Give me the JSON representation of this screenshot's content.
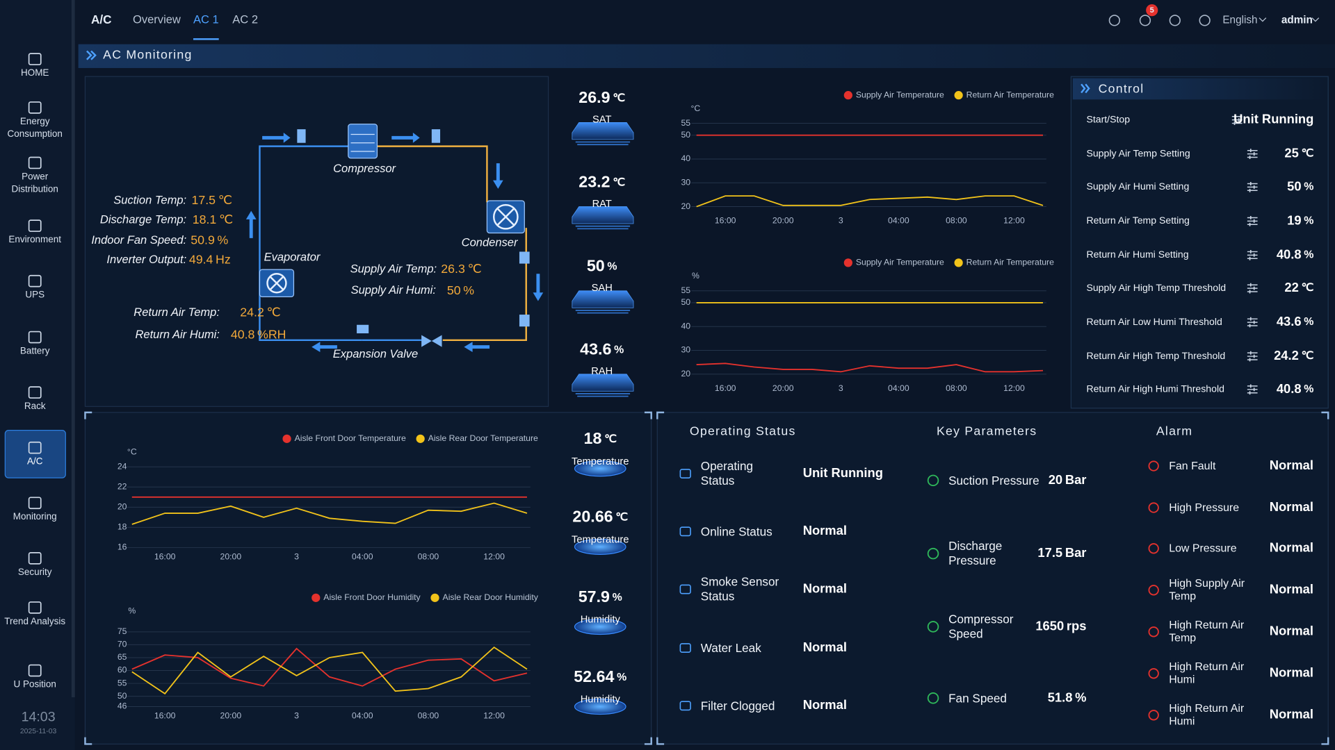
{
  "sidebar": {
    "items": [
      "HOME",
      "Energy Consumption",
      "Power Distribution",
      "Environment",
      "UPS",
      "Battery",
      "Rack",
      "A/C",
      "Monitoring",
      "Security",
      "Trend Analysis",
      "U Position"
    ],
    "time": "14:03",
    "date": "2025-11-03"
  },
  "header": {
    "title": "A/C",
    "tabs": [
      "Overview",
      "AC 1",
      "AC 2"
    ],
    "alarm_count": 5,
    "language": "English",
    "user": "admin"
  },
  "section_title": "AC Monitoring",
  "diagram": {
    "components": [
      "Compressor",
      "Condenser",
      "Evaporator",
      "Expansion Valve"
    ],
    "readings": [
      {
        "label": "Suction Temp:",
        "value": 17.5,
        "unit": "℃"
      },
      {
        "label": "Discharge Temp:",
        "value": 18.1,
        "unit": "℃"
      },
      {
        "label": "Indoor Fan Speed:",
        "value": 50.9,
        "unit": "%"
      },
      {
        "label": "Inverter Output:",
        "value": 49.4,
        "unit": "Hz"
      },
      {
        "label": "Supply Air Temp:",
        "value": 26.3,
        "unit": "℃"
      },
      {
        "label": "Supply Air Humi:",
        "value": 50,
        "unit": "%"
      },
      {
        "label": "Return Air Temp:",
        "value": 24.2,
        "unit": "℃"
      },
      {
        "label": "Return Air Humi:",
        "value": 40.8,
        "unit": "%RH"
      }
    ]
  },
  "air_gauges": [
    {
      "value": 26.9,
      "unit": "℃",
      "label": "SAT"
    },
    {
      "value": 23.2,
      "unit": "℃",
      "label": "RAT"
    },
    {
      "value": 50,
      "unit": "%",
      "label": "SAH"
    },
    {
      "value": 43.6,
      "unit": "%",
      "label": "RAH"
    }
  ],
  "chart_data": [
    {
      "type": "line",
      "ylabel": "°C",
      "legend": "top-right",
      "grid": true,
      "categories": [
        null,
        "16:00",
        null,
        "20:00",
        null,
        "3",
        null,
        "04:00",
        null,
        "08:00",
        null,
        "12:00",
        null
      ],
      "ylim": [
        18,
        55
      ],
      "yticks": [
        20,
        30,
        40,
        50,
        55
      ],
      "series": [
        {
          "name": "Supply Air Temperature",
          "color": "#e5322d",
          "values": [
            50,
            50,
            50,
            50,
            50,
            50,
            50,
            50,
            50,
            50,
            50,
            50,
            50
          ]
        },
        {
          "name": "Return Air Temperature",
          "color": "#f2c31a",
          "values": [
            20,
            24.5,
            24.5,
            20.5,
            20.5,
            20.5,
            23,
            23.5,
            24,
            23,
            24.5,
            24.5,
            20.5
          ]
        }
      ]
    },
    {
      "type": "line",
      "ylabel": "%",
      "legend": "top-right",
      "grid": true,
      "categories": [
        null,
        "16:00",
        null,
        "20:00",
        null,
        "3",
        null,
        "04:00",
        null,
        "08:00",
        null,
        "12:00",
        null
      ],
      "ylim": [
        18,
        55
      ],
      "yticks": [
        20,
        30,
        40,
        50,
        55
      ],
      "series": [
        {
          "name": "Supply Air Temperature",
          "color": "#e5322d",
          "values": [
            24,
            24.5,
            23,
            22,
            22,
            21,
            23.5,
            22.5,
            22.5,
            24,
            21,
            21,
            21.5
          ]
        },
        {
          "name": "Return Air Temperature",
          "color": "#f2c31a",
          "values": [
            50,
            50,
            50,
            50,
            50,
            50,
            50,
            50,
            50,
            50,
            50,
            50,
            50
          ]
        }
      ]
    },
    {
      "type": "line",
      "ylabel": "°C",
      "legend": "top-right",
      "grid": true,
      "categories": [
        null,
        "16:00",
        null,
        "20:00",
        null,
        "3",
        null,
        "04:00",
        null,
        "08:00",
        null,
        "12:00",
        null
      ],
      "ylim": [
        15.4,
        24
      ],
      "yticks": [
        16,
        18,
        20,
        22,
        24
      ],
      "series": [
        {
          "name": "Aisle Front Door Temperature",
          "color": "#e5322d",
          "values": [
            21,
            21,
            21,
            21,
            21,
            21,
            21,
            21,
            21,
            21,
            21,
            21,
            21
          ]
        },
        {
          "name": "Aisle Rear Door Temperature",
          "color": "#f2c31a",
          "values": [
            18.3,
            19.4,
            19.4,
            20.1,
            19,
            19.9,
            18.9,
            18.6,
            18.4,
            19.7,
            19.6,
            20.4,
            19.4
          ]
        }
      ]
    },
    {
      "type": "line",
      "ylabel": "%",
      "legend": "top-right",
      "grid": true,
      "categories": [
        null,
        "16:00",
        null,
        "20:00",
        null,
        "3",
        null,
        "04:00",
        null,
        "08:00",
        null,
        "12:00",
        null
      ],
      "ylim": [
        44,
        76
      ],
      "yticks": [
        46,
        50,
        55,
        60,
        65,
        70,
        75
      ],
      "series": [
        {
          "name": "Aisle Front Door Humidity",
          "color": "#e5322d",
          "values": [
            60.5,
            66,
            65,
            57,
            54,
            68.5,
            57.5,
            54,
            60.5,
            64,
            64.5,
            56,
            59
          ]
        },
        {
          "name": "Aisle Rear Door Humidity",
          "color": "#f2c31a",
          "values": [
            59.5,
            51,
            67,
            57.5,
            65.5,
            58,
            65,
            67,
            52,
            53,
            57.5,
            69,
            60.5
          ]
        }
      ]
    }
  ],
  "control": {
    "title": "Control",
    "rows": [
      {
        "label": "Start/Stop",
        "value": "Unit Running"
      },
      {
        "label": "Supply Air Temp Setting",
        "value": 25,
        "unit": "℃"
      },
      {
        "label": "Supply Air Humi Setting",
        "value": 50,
        "unit": "%"
      },
      {
        "label": "Return Air Temp Setting",
        "value": 19,
        "unit": "%"
      },
      {
        "label": "Return Air Humi Setting",
        "value": 40.8,
        "unit": "%"
      },
      {
        "label": "Supply Air High Temp Threshold",
        "value": 22,
        "unit": "℃"
      },
      {
        "label": "Return Air Low Humi Threshold",
        "value": 43.6,
        "unit": "%"
      },
      {
        "label": "Return Air High Temp Threshold",
        "value": 24.2,
        "unit": "℃"
      },
      {
        "label": "Return Air High Humi Threshold",
        "value": 40.8,
        "unit": "%"
      }
    ]
  },
  "aisle_gauges": [
    {
      "value": 18,
      "unit": "℃",
      "label": "Temperature"
    },
    {
      "value": 20.66,
      "unit": "℃",
      "label": "Temperature"
    },
    {
      "value": 57.9,
      "unit": "%",
      "label": "Humidity"
    },
    {
      "value": 52.64,
      "unit": "%",
      "label": "Humidity"
    }
  ],
  "operating_status": {
    "title": "Operating Status",
    "rows": [
      {
        "label": "Operating Status",
        "value": "Unit Running"
      },
      {
        "label": "Online Status",
        "value": "Normal"
      },
      {
        "label": "Smoke Sensor Status",
        "value": "Normal"
      },
      {
        "label": "Water Leak",
        "value": "Normal"
      },
      {
        "label": "Filter Clogged",
        "value": "Normal"
      }
    ]
  },
  "key_parameters": {
    "title": "Key Parameters",
    "rows": [
      {
        "label": "Suction Pressure",
        "value": 20,
        "unit": "Bar"
      },
      {
        "label": "Discharge Pressure",
        "value": 17.5,
        "unit": "Bar"
      },
      {
        "label": "Compressor Speed",
        "value": 1650,
        "unit": "rps"
      },
      {
        "label": "Fan Speed",
        "value": 51.8,
        "unit": "%"
      }
    ]
  },
  "alarm": {
    "title": "Alarm",
    "rows": [
      {
        "label": "Fan Fault",
        "value": "Normal"
      },
      {
        "label": "High Pressure",
        "value": "Normal"
      },
      {
        "label": "Low Pressure",
        "value": "Normal"
      },
      {
        "label": "High Supply Air Temp",
        "value": "Normal"
      },
      {
        "label": "High Return Air Temp",
        "value": "Normal"
      },
      {
        "label": "High Return Air Humi",
        "value": "Normal"
      },
      {
        "label": "High Return Air Humi",
        "value": "Normal"
      }
    ]
  }
}
